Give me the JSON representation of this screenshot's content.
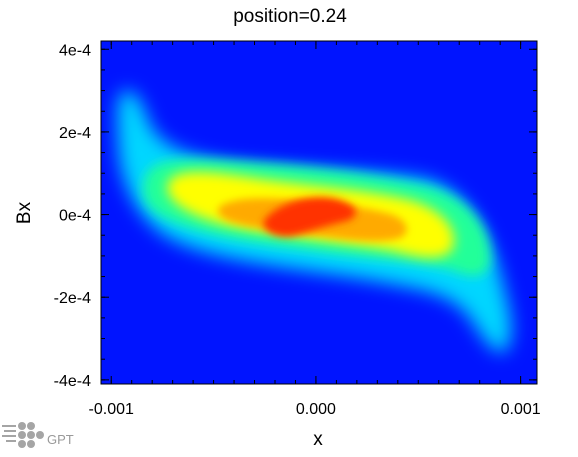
{
  "chart_data": {
    "type": "heatmap",
    "title": "position=0.24",
    "xlabel": "x",
    "ylabel": "Bx",
    "xlim": [
      -0.00105,
      0.00108
    ],
    "ylim": [
      -0.00041,
      0.00042
    ],
    "x_ticks": [
      {
        "value": -0.001,
        "label": "-0.001"
      },
      {
        "value": 0.0,
        "label": "0.000"
      },
      {
        "value": 0.001,
        "label": "0.001"
      }
    ],
    "y_ticks": [
      {
        "value": 0.0004,
        "label": "4e-4"
      },
      {
        "value": 0.0002,
        "label": "2e-4"
      },
      {
        "value": 0.0,
        "label": "0e-4"
      },
      {
        "value": -0.0002,
        "label": "-2e-4"
      },
      {
        "value": -0.0004,
        "label": "-4e-4"
      }
    ],
    "colormap": [
      "#0014ff",
      "#00e5ff",
      "#2bff88",
      "#ffff00",
      "#ff2a00"
    ],
    "background_color": "#0014ff",
    "distribution_centerline": [
      [
        -0.00098,
        0.00028
      ],
      [
        -0.0008,
        0.0001
      ],
      [
        -0.0004,
        5e-05
      ],
      [
        0.0,
        0.0
      ],
      [
        0.0004,
        -5e-05
      ],
      [
        0.0008,
        -0.0001
      ],
      [
        0.00096,
        -0.0003
      ]
    ],
    "grid": false,
    "legend": "none"
  },
  "logo": {
    "text": "GPT",
    "icon": "gpt-logo-icon"
  }
}
